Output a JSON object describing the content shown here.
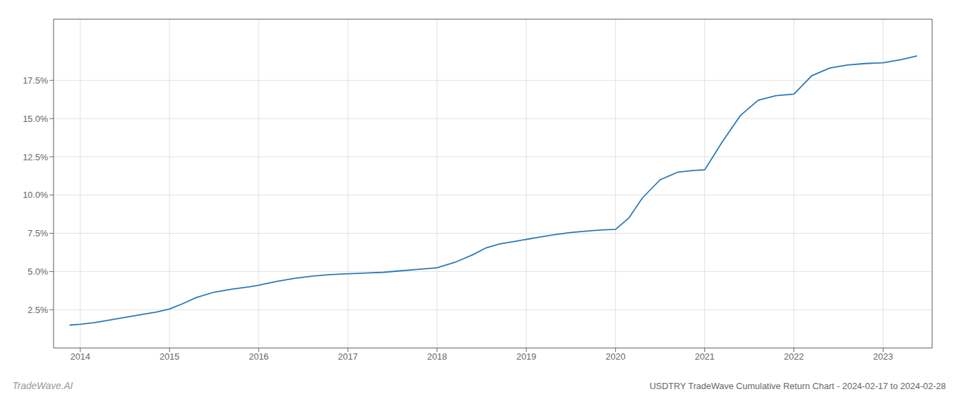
{
  "chart_data": {
    "type": "line",
    "title": "USDTRY TradeWave Cumulative Return Chart - 2024-02-17 to 2024-02-28",
    "annotations": [
      "TradeWave.AI"
    ],
    "color": "#2878b5",
    "grid": true,
    "x": [
      2013.88,
      2014.0,
      2014.15,
      2014.3,
      2014.5,
      2014.7,
      2014.85,
      2015.0,
      2015.15,
      2015.3,
      2015.5,
      2015.7,
      2015.9,
      2016.0,
      2016.2,
      2016.4,
      2016.6,
      2016.8,
      2017.0,
      2017.2,
      2017.4,
      2017.6,
      2017.8,
      2018.0,
      2018.2,
      2018.4,
      2018.55,
      2018.7,
      2018.85,
      2019.0,
      2019.15,
      2019.3,
      2019.5,
      2019.7,
      2019.85,
      2020.0,
      2020.15,
      2020.3,
      2020.5,
      2020.7,
      2020.85,
      2021.0,
      2021.2,
      2021.4,
      2021.6,
      2021.8,
      2022.0,
      2022.2,
      2022.4,
      2022.6,
      2022.8,
      2023.0,
      2023.2,
      2023.38
    ],
    "values": [
      1.5,
      1.55,
      1.65,
      1.8,
      2.0,
      2.2,
      2.35,
      2.55,
      2.9,
      3.3,
      3.65,
      3.85,
      4.0,
      4.1,
      4.35,
      4.55,
      4.7,
      4.8,
      4.85,
      4.9,
      4.95,
      5.05,
      5.15,
      5.25,
      5.6,
      6.1,
      6.55,
      6.8,
      6.95,
      7.1,
      7.25,
      7.4,
      7.55,
      7.65,
      7.72,
      7.75,
      8.5,
      9.8,
      11.0,
      11.5,
      11.6,
      11.65,
      13.5,
      15.2,
      16.2,
      16.5,
      16.6,
      17.8,
      18.3,
      18.5,
      18.6,
      18.65,
      18.85,
      19.1
    ],
    "xlim": [
      2013.7,
      2023.55
    ],
    "xticks": [
      2014,
      2015,
      2016,
      2017,
      2018,
      2019,
      2020,
      2021,
      2022,
      2023
    ],
    "ylim": [
      0.0,
      21.5
    ],
    "yticks": [
      {
        "value": 2.5,
        "label": "2.5%"
      },
      {
        "value": 5.0,
        "label": "5.0%"
      },
      {
        "value": 7.5,
        "label": "7.5%"
      },
      {
        "value": 10.0,
        "label": "10.0%"
      },
      {
        "value": 12.5,
        "label": "12.5%"
      },
      {
        "value": 15.0,
        "label": "15.0%"
      },
      {
        "value": 17.5,
        "label": "17.5%"
      }
    ]
  }
}
